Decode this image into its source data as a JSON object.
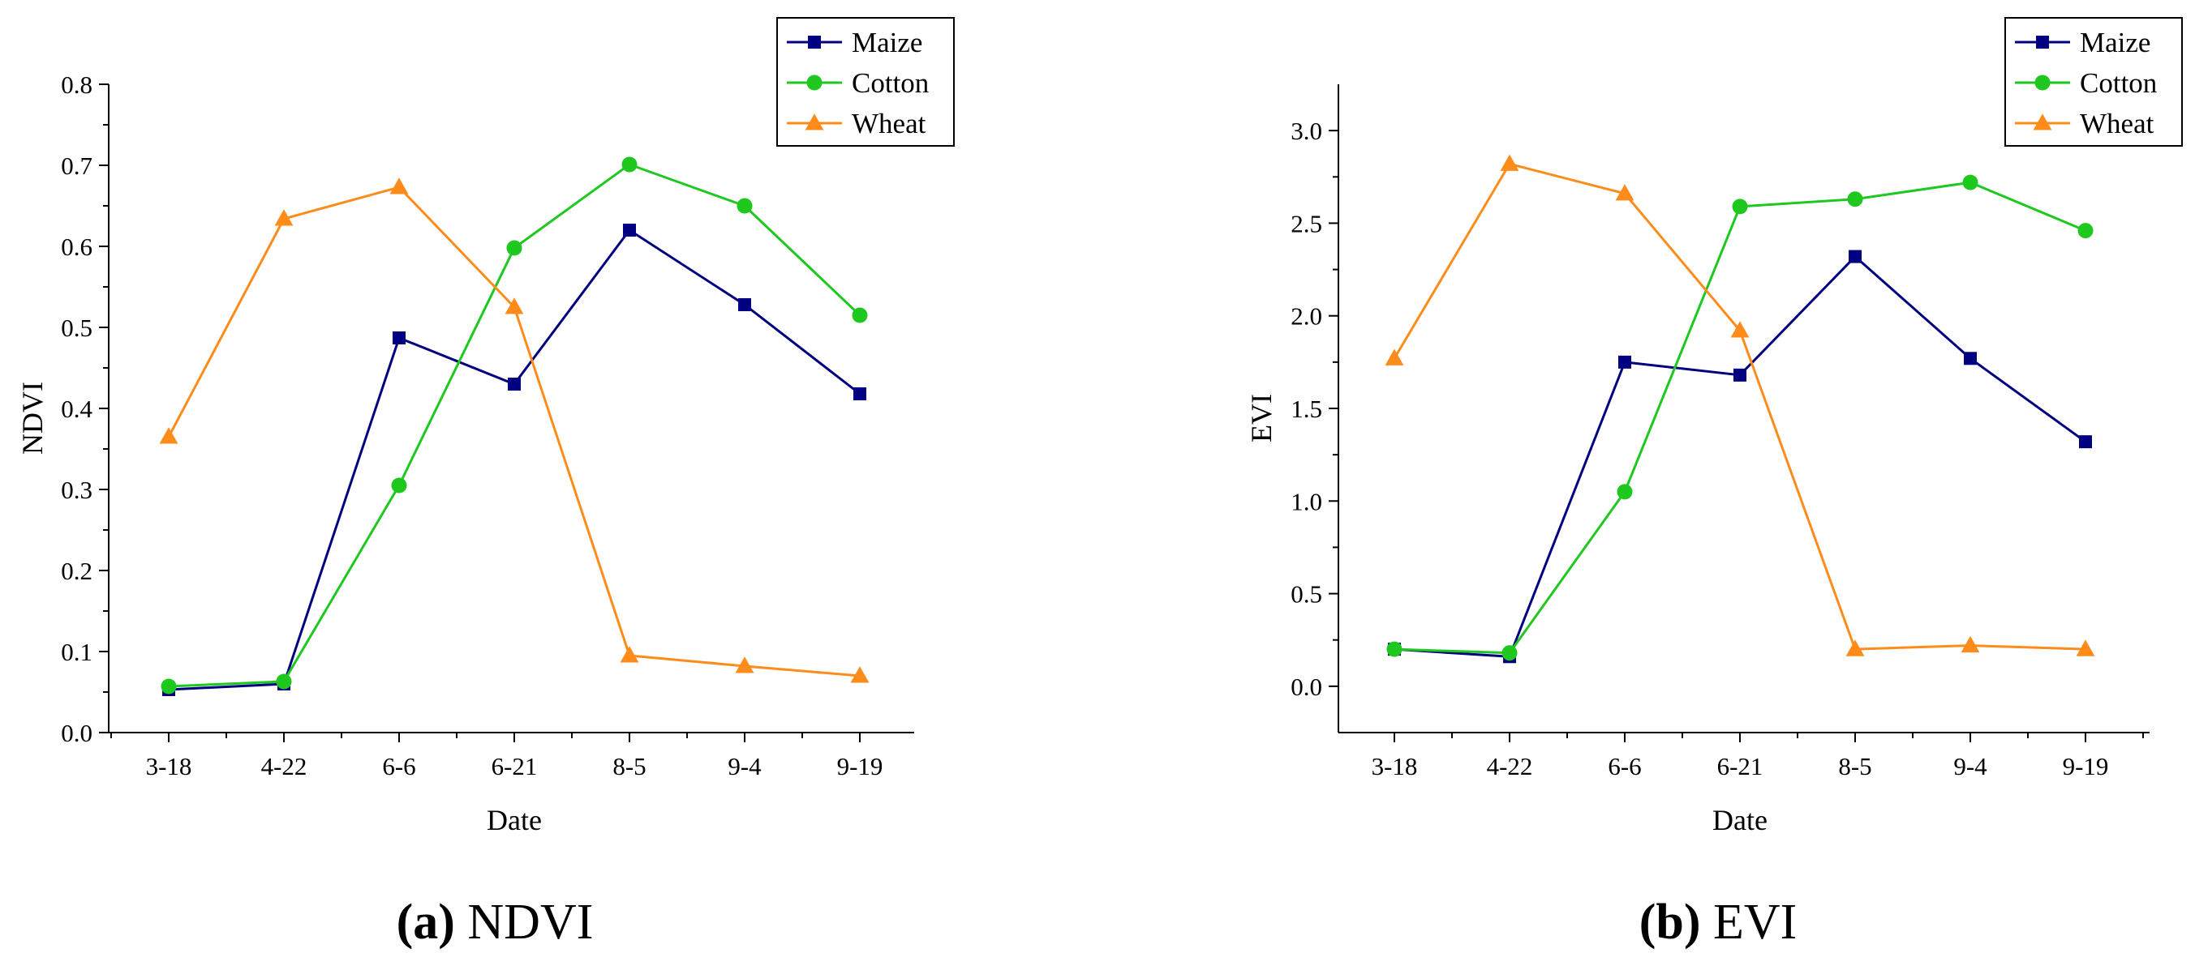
{
  "chart_data": [
    {
      "type": "line",
      "title": "",
      "xlabel": "Date",
      "ylabel": "NDVI",
      "categories": [
        "3-18",
        "4-22",
        "6-6",
        "6-21",
        "8-5",
        "9-4",
        "9-19"
      ],
      "ylim": [
        0,
        0.8
      ],
      "yticks": [
        0.0,
        0.1,
        0.2,
        0.3,
        0.4,
        0.5,
        0.6,
        0.7,
        0.8
      ],
      "ytick_labels": [
        "0.0",
        "0.1",
        "0.2",
        "0.3",
        "0.4",
        "0.5",
        "0.6",
        "0.7",
        "0.8"
      ],
      "legend_position": "top-right",
      "series": [
        {
          "name": "Maize",
          "color": "#000080",
          "marker": "square",
          "values": [
            0.053,
            0.06,
            0.487,
            0.43,
            0.62,
            0.528,
            0.418
          ]
        },
        {
          "name": "Cotton",
          "color": "#1ec81e",
          "marker": "circle",
          "values": [
            0.057,
            0.063,
            0.305,
            0.598,
            0.701,
            0.65,
            0.515
          ]
        },
        {
          "name": "Wheat",
          "color": "#ff8c1a",
          "marker": "triangle",
          "values": [
            0.365,
            0.634,
            0.673,
            0.525,
            0.095,
            0.082,
            0.07
          ]
        }
      ]
    },
    {
      "type": "line",
      "title": "",
      "xlabel": "Date",
      "ylabel": "EVI",
      "categories": [
        "3-18",
        "4-22",
        "6-6",
        "6-21",
        "8-5",
        "9-4",
        "9-19"
      ],
      "ylim": [
        -0.25,
        3.25
      ],
      "yticks": [
        0.0,
        0.5,
        1.0,
        1.5,
        2.0,
        2.5,
        3.0
      ],
      "ytick_labels": [
        "0.0",
        "0.5",
        "1.0",
        "1.5",
        "2.0",
        "2.5",
        "3.0"
      ],
      "legend_position": "top-right",
      "series": [
        {
          "name": "Maize",
          "color": "#000080",
          "marker": "square",
          "values": [
            0.2,
            0.16,
            1.75,
            1.68,
            2.32,
            1.77,
            1.32
          ]
        },
        {
          "name": "Cotton",
          "color": "#1ec81e",
          "marker": "circle",
          "values": [
            0.2,
            0.18,
            1.05,
            2.59,
            2.63,
            2.72,
            2.46
          ]
        },
        {
          "name": "Wheat",
          "color": "#ff8c1a",
          "marker": "triangle",
          "values": [
            1.77,
            2.82,
            2.66,
            1.92,
            0.2,
            0.22,
            0.2
          ]
        }
      ]
    }
  ],
  "captions": [
    {
      "label": "(a)",
      "text": " NDVI"
    },
    {
      "label": "(b)",
      "text": " EVI"
    }
  ]
}
